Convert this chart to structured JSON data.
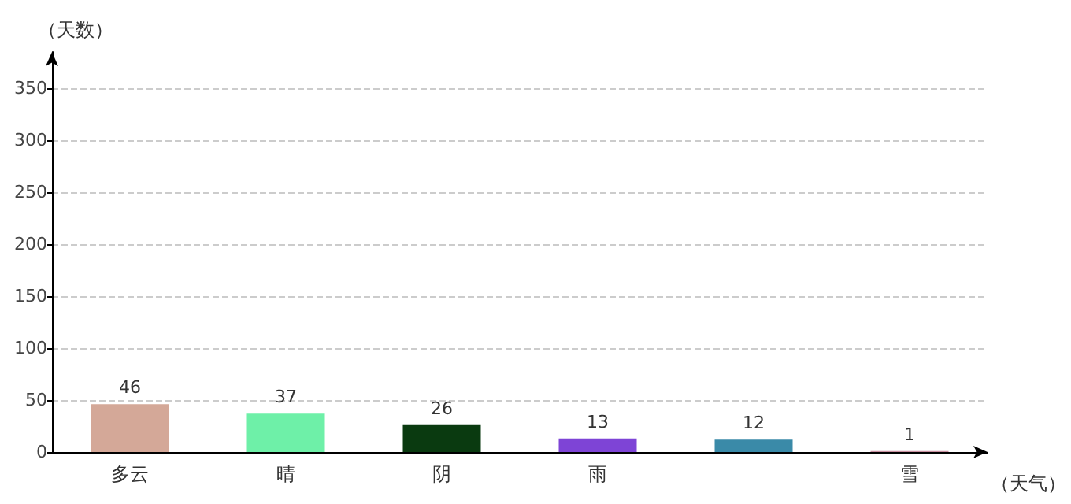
{
  "chart_data": {
    "type": "bar",
    "xlabel": "（天气）",
    "ylabel": "（天数）",
    "categories": [
      "多云",
      "晴",
      "阴",
      "雨",
      null,
      "雪"
    ],
    "values": [
      46,
      37,
      26,
      13,
      12,
      1
    ],
    "colors": [
      "#d4a898",
      "#6ef0a8",
      "#0a3a10",
      "#7e44d6",
      "#3a8aa8",
      "#c890a0"
    ],
    "ylim": [
      0,
      385
    ],
    "yticks": [
      0,
      50,
      100,
      150,
      200,
      250,
      300,
      350
    ],
    "grid": "y",
    "data_labels": true
  }
}
